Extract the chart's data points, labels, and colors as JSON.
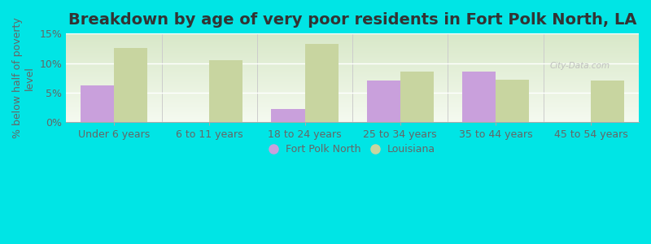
{
  "title": "Breakdown by age of very poor residents in Fort Polk North, LA",
  "categories": [
    "Under 6 years",
    "6 to 11 years",
    "18 to 24 years",
    "25 to 34 years",
    "35 to 44 years",
    "45 to 54 years"
  ],
  "fort_polk": [
    6.2,
    0.0,
    2.2,
    7.0,
    8.5,
    0.0
  ],
  "louisiana": [
    12.5,
    10.5,
    13.2,
    8.5,
    7.2,
    7.0
  ],
  "fort_polk_color": "#c9a0dc",
  "louisiana_color": "#c8d5a0",
  "background_color": "#00e5e5",
  "plot_bg_top": "#d8e8c8",
  "plot_bg_bottom": "#f5faf0",
  "ylabel": "% below half of poverty\nlevel",
  "ylim": [
    0,
    15
  ],
  "yticks": [
    0,
    5,
    10,
    15
  ],
  "ytick_labels": [
    "0%",
    "5%",
    "10%",
    "15%"
  ],
  "legend_fort_polk": "Fort Polk North",
  "legend_louisiana": "Louisiana",
  "bar_width": 0.35,
  "title_fontsize": 14,
  "tick_fontsize": 9,
  "ylabel_fontsize": 9,
  "axis_text_color": "#666666",
  "watermark": "City-Data.com"
}
